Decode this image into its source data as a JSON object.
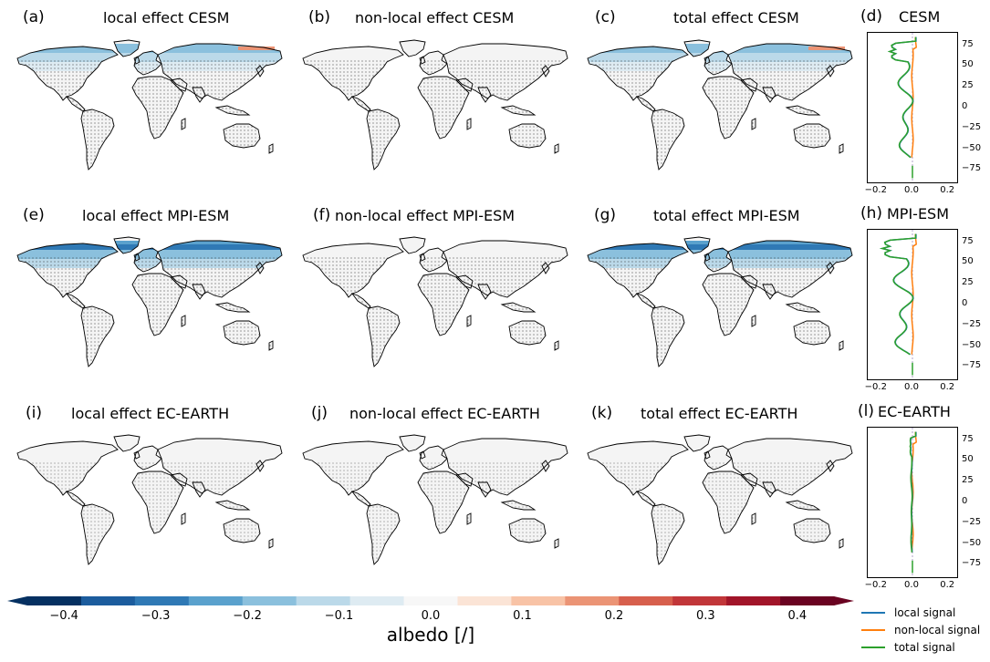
{
  "panels": [
    {
      "id": "a",
      "label": "(a)",
      "title": "local effect CESM",
      "pattern": "local_strong"
    },
    {
      "id": "b",
      "label": "(b)",
      "title": "non-local effect CESM",
      "pattern": "none"
    },
    {
      "id": "c",
      "label": "(c)",
      "title": "total effect CESM",
      "pattern": "local_strong"
    },
    {
      "id": "e",
      "label": "(e)",
      "title": "local effect MPI-ESM",
      "pattern": "local_very_strong"
    },
    {
      "id": "f",
      "label": "(f)",
      "title": "non-local effect MPI-ESM",
      "pattern": "none"
    },
    {
      "id": "g",
      "label": "(g)",
      "title": "total effect MPI-ESM",
      "pattern": "local_very_strong"
    },
    {
      "id": "i",
      "label": "(i)",
      "title": "local effect EC-EARTH",
      "pattern": "weak"
    },
    {
      "id": "j",
      "label": "(j)",
      "title": "non-local effect EC-EARTH",
      "pattern": "weak"
    },
    {
      "id": "k",
      "label": "(k)",
      "title": "total effect EC-EARTH",
      "pattern": "weak"
    }
  ],
  "profiles": [
    {
      "id": "d",
      "label": "(d)",
      "title": "CESM",
      "local_strength": 0.9
    },
    {
      "id": "h",
      "label": "(h)",
      "title": "MPI-ESM",
      "local_strength": 1.2
    },
    {
      "id": "l",
      "label": "(l)",
      "title": "EC-EARTH",
      "local_strength": 0.08
    }
  ],
  "profile_axes": {
    "xticks": [
      "−0.2",
      "0.0",
      "0.2"
    ],
    "yticks": [
      "75",
      "50",
      "25",
      "0",
      "−25",
      "−50",
      "−75"
    ],
    "xlim": [
      -0.25,
      0.25
    ],
    "ylim": [
      -90,
      90
    ]
  },
  "colorbar": {
    "ticks": [
      "−0.4",
      "−0.3",
      "−0.2",
      "−0.1",
      "0.0",
      "0.1",
      "0.2",
      "0.3",
      "0.4"
    ],
    "label": "albedo [/]",
    "colors": [
      "#053061",
      "#1c5c9d",
      "#2f79b5",
      "#5aa1cd",
      "#8bc0dd",
      "#bbd9e9",
      "#deebf2",
      "#f7f7f7",
      "#fbe4d6",
      "#f8c3a6",
      "#eb9475",
      "#d75f4d",
      "#c13639",
      "#a11529",
      "#6a0321"
    ]
  },
  "legend": [
    {
      "label": "local signal",
      "color": "#1f77b4"
    },
    {
      "label": "non-local signal",
      "color": "#ff7f0e"
    },
    {
      "label": "total signal",
      "color": "#2ca02c"
    }
  ]
}
